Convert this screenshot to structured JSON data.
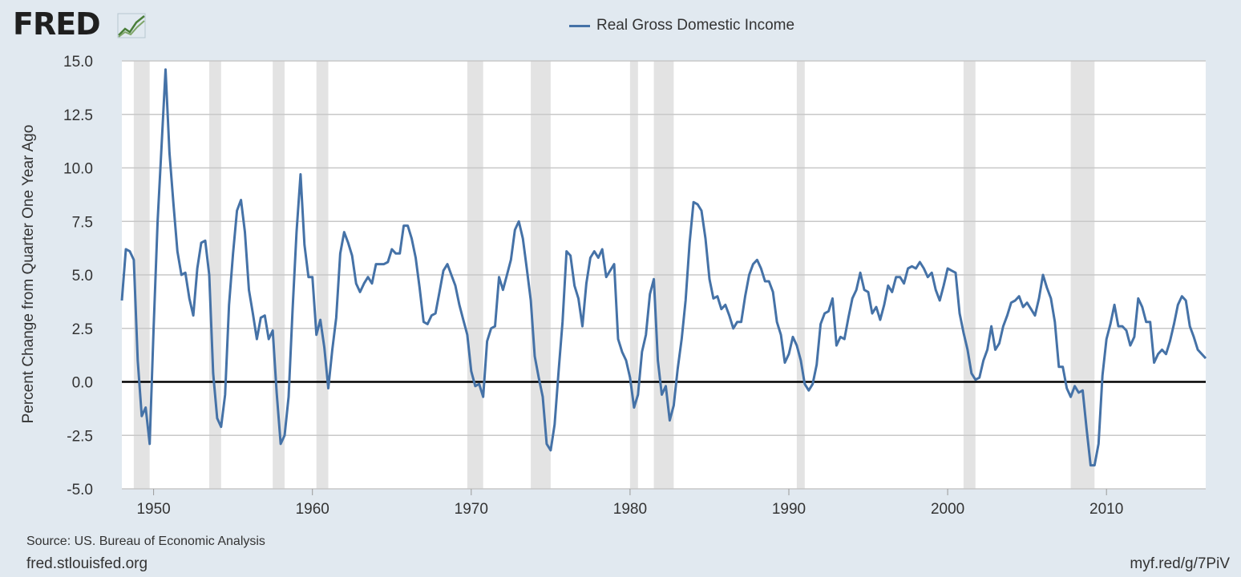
{
  "header": {
    "logo_text": "FRED",
    "legend_label": "Real Gross Domestic Income"
  },
  "footer": {
    "source": "Source: US. Bureau of Economic Analysis",
    "site": "fred.stlouisfed.org",
    "short_link": "myf.red/g/7PiV"
  },
  "colors": {
    "background": "#e1e9f0",
    "plot_background": "#ffffff",
    "series": "#4572a7",
    "recession_shade": "#e3e3e3",
    "grid": "#c8c8c8",
    "zero_line": "#000000"
  },
  "icons": {
    "logo_graph": "fred-graph-icon"
  },
  "chart_data": {
    "type": "line",
    "title": "",
    "xlabel": "",
    "ylabel": "Percent Change from Quarter One Year Ago",
    "xlim": [
      1948.0,
      2016.25
    ],
    "ylim": [
      -5.0,
      15.0
    ],
    "yticks": [
      "15.0",
      "12.5",
      "10.0",
      "7.5",
      "5.0",
      "2.5",
      "0.0",
      "-2.5",
      "-5.0"
    ],
    "xticks": [
      1950,
      1960,
      1970,
      1980,
      1990,
      2000,
      2010
    ],
    "grid": true,
    "legend_position": "top-center",
    "recessions": [
      [
        1948.75,
        1949.75
      ],
      [
        1953.5,
        1954.25
      ],
      [
        1957.5,
        1958.25
      ],
      [
        1960.25,
        1961.0
      ],
      [
        1969.75,
        1970.75
      ],
      [
        1973.75,
        1975.0
      ],
      [
        1980.0,
        1980.5
      ],
      [
        1981.5,
        1982.75
      ],
      [
        1990.5,
        1991.0
      ],
      [
        2001.0,
        2001.75
      ],
      [
        2007.75,
        2009.25
      ]
    ],
    "series": [
      {
        "name": "Real Gross Domestic Income",
        "x_start": 1948.0,
        "x_step": 0.25,
        "values": [
          3.8,
          6.2,
          6.1,
          5.7,
          1.0,
          -1.6,
          -1.2,
          -2.9,
          2.5,
          7.5,
          11.0,
          14.6,
          10.7,
          8.3,
          6.1,
          5.0,
          5.1,
          3.9,
          3.1,
          5.3,
          6.5,
          6.6,
          5.0,
          0.4,
          -1.7,
          -2.1,
          -0.6,
          3.6,
          6.0,
          8.0,
          8.5,
          7.0,
          4.3,
          3.2,
          2.0,
          3.0,
          3.1,
          2.0,
          2.4,
          -0.5,
          -2.9,
          -2.5,
          -0.7,
          3.4,
          7.0,
          9.7,
          6.4,
          4.9,
          4.9,
          2.2,
          2.9,
          1.6,
          -0.3,
          1.5,
          3.0,
          6.0,
          7.0,
          6.5,
          5.9,
          4.6,
          4.2,
          4.6,
          4.9,
          4.6,
          5.5,
          5.5,
          5.5,
          5.6,
          6.2,
          6.0,
          6.0,
          7.3,
          7.3,
          6.7,
          5.8,
          4.4,
          2.8,
          2.7,
          3.1,
          3.2,
          4.2,
          5.2,
          5.5,
          5.0,
          4.5,
          3.6,
          2.9,
          2.2,
          0.5,
          -0.2,
          -0.1,
          -0.7,
          1.9,
          2.5,
          2.6,
          4.9,
          4.3,
          5.0,
          5.7,
          7.1,
          7.5,
          6.7,
          5.3,
          3.8,
          1.2,
          0.2,
          -0.7,
          -2.9,
          -3.2,
          -2.0,
          0.5,
          2.8,
          6.1,
          5.9,
          4.5,
          3.9,
          2.6,
          4.6,
          5.8,
          6.1,
          5.8,
          6.2,
          4.9,
          5.2,
          5.5,
          2.0,
          1.4,
          1.0,
          0.2,
          -1.2,
          -0.6,
          1.4,
          2.2,
          4.1,
          4.8,
          1.0,
          -0.6,
          -0.2,
          -1.8,
          -1.1,
          0.6,
          2.0,
          3.8,
          6.5,
          8.4,
          8.3,
          8.0,
          6.7,
          4.8,
          3.9,
          4.0,
          3.4,
          3.6,
          3.1,
          2.5,
          2.8,
          2.8,
          4.0,
          5.0,
          5.5,
          5.7,
          5.3,
          4.7,
          4.7,
          4.2,
          2.8,
          2.2,
          0.9,
          1.3,
          2.1,
          1.7,
          1.0,
          -0.1,
          -0.4,
          -0.1,
          0.8,
          2.7,
          3.2,
          3.3,
          3.9,
          1.7,
          2.1,
          2.0,
          3.0,
          3.9,
          4.3,
          5.1,
          4.3,
          4.2,
          3.2,
          3.5,
          2.9,
          3.6,
          4.5,
          4.2,
          4.9,
          4.9,
          4.6,
          5.3,
          5.4,
          5.3,
          5.6,
          5.3,
          4.9,
          5.1,
          4.3,
          3.8,
          4.5,
          5.3,
          5.2,
          5.1,
          3.2,
          2.3,
          1.5,
          0.4,
          0.1,
          0.2,
          1.0,
          1.5,
          2.6,
          1.5,
          1.8,
          2.6,
          3.1,
          3.7,
          3.8,
          4.0,
          3.5,
          3.7,
          3.4,
          3.1,
          3.9,
          5.0,
          4.4,
          3.9,
          2.8,
          0.7,
          0.7,
          -0.3,
          -0.7,
          -0.2,
          -0.5,
          -0.4,
          -2.2,
          -3.9,
          -3.9,
          -2.9,
          0.3,
          2.0,
          2.7,
          3.6,
          2.6,
          2.6,
          2.4,
          1.7,
          2.1,
          3.9,
          3.5,
          2.8,
          2.8,
          0.9,
          1.3,
          1.5,
          1.3,
          1.9,
          2.7,
          3.6,
          4.0,
          3.8,
          2.6,
          2.1,
          1.5,
          1.3,
          1.1
        ]
      }
    ]
  }
}
